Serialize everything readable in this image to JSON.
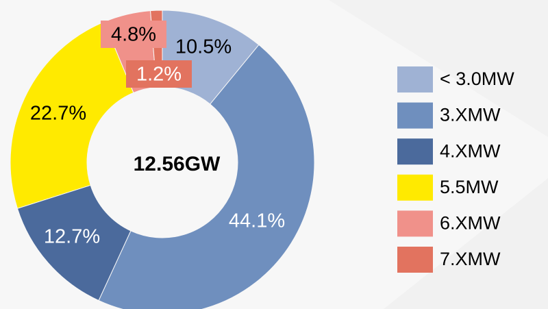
{
  "chart_data": {
    "type": "donut",
    "center_label": "12.56GW",
    "categories": [
      "< 3.0MW",
      "3.XMW",
      "4.XMW",
      "5.5MW",
      "6.XMW",
      "7.XMW"
    ],
    "values": [
      10.5,
      44.1,
      12.7,
      22.7,
      4.8,
      1.2
    ],
    "value_labels": [
      "10.5%",
      "44.1%",
      "12.7%",
      "22.7%",
      "4.8%",
      "1.2%"
    ],
    "colors": [
      "#9fb2d4",
      "#6f8fbe",
      "#4b6a9c",
      "#ffea00",
      "#f0918a",
      "#e2735f"
    ],
    "legend": "right"
  }
}
